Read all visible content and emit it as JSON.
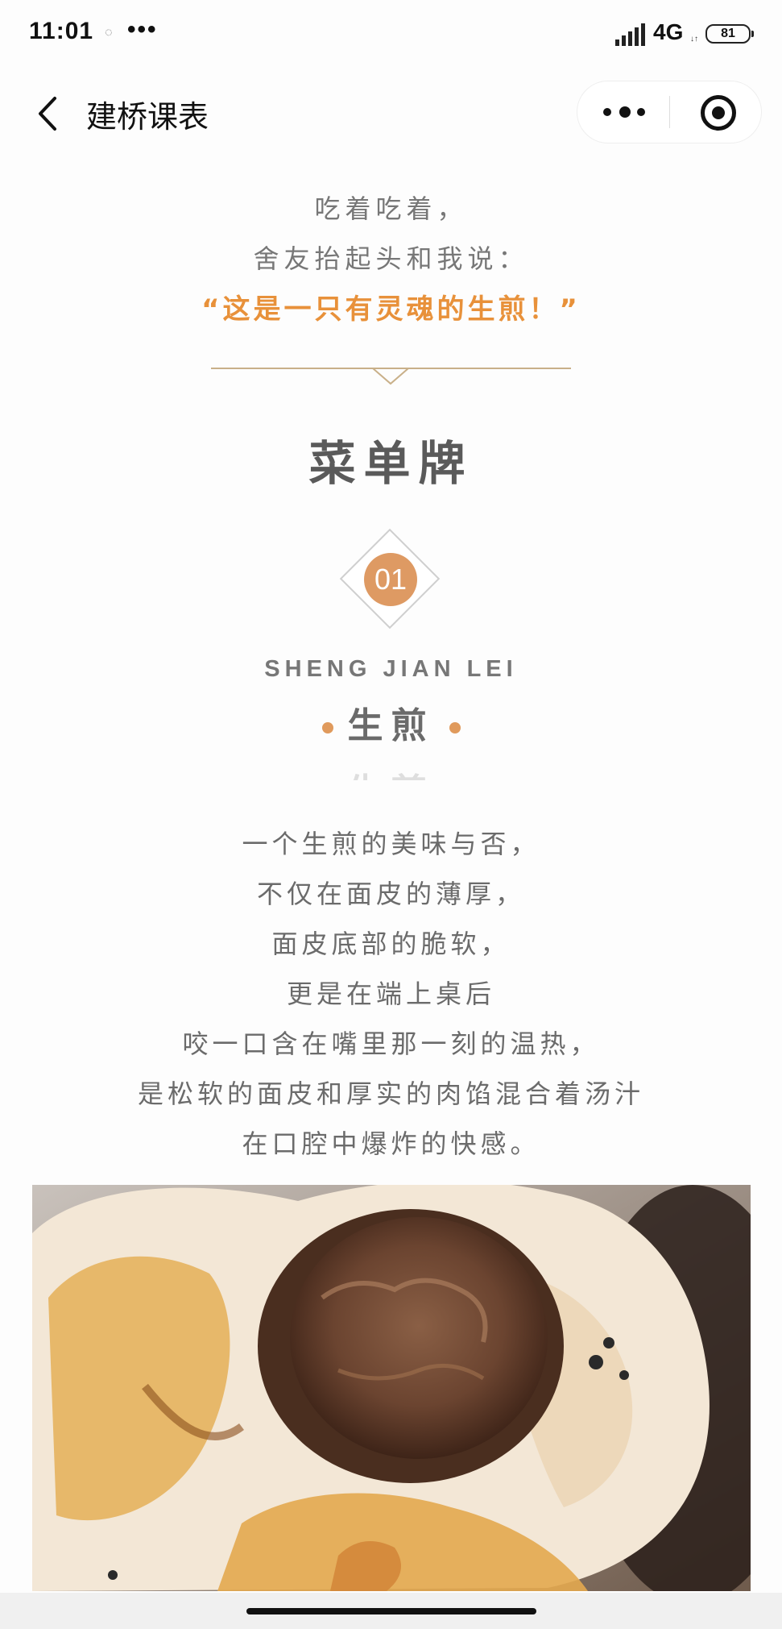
{
  "status_bar": {
    "time": "11:01",
    "dots": "•••",
    "network": "4G",
    "battery": "81"
  },
  "header": {
    "title": "建桥课表"
  },
  "article": {
    "intro_lines": [
      "吃着吃着，",
      "舍友抬起头和我说："
    ],
    "highlight": "“这是一只有灵魂的生煎！”",
    "section_title": "菜单牌",
    "badge_number": "01",
    "latin_title": "SHENG JIAN LEI",
    "dish_title": "生煎",
    "body_lines": [
      "一个生煎的美味与否，",
      "不仅在面皮的薄厚，",
      "面皮底部的脆软，",
      "更是在端上桌后",
      "咬一口含在嘴里那一刻的温热，",
      "是松软的面皮和厚实的肉馅混合着汤汁",
      "在口腔中爆炸的快感。"
    ]
  },
  "colors": {
    "accent_orange": "#e8913a",
    "badge_orange": "#de9a63",
    "text_gray": "#6b6b6b"
  },
  "icons": [
    "back-icon",
    "more-icon",
    "close-mini-icon",
    "signal-icon",
    "battery-icon"
  ]
}
